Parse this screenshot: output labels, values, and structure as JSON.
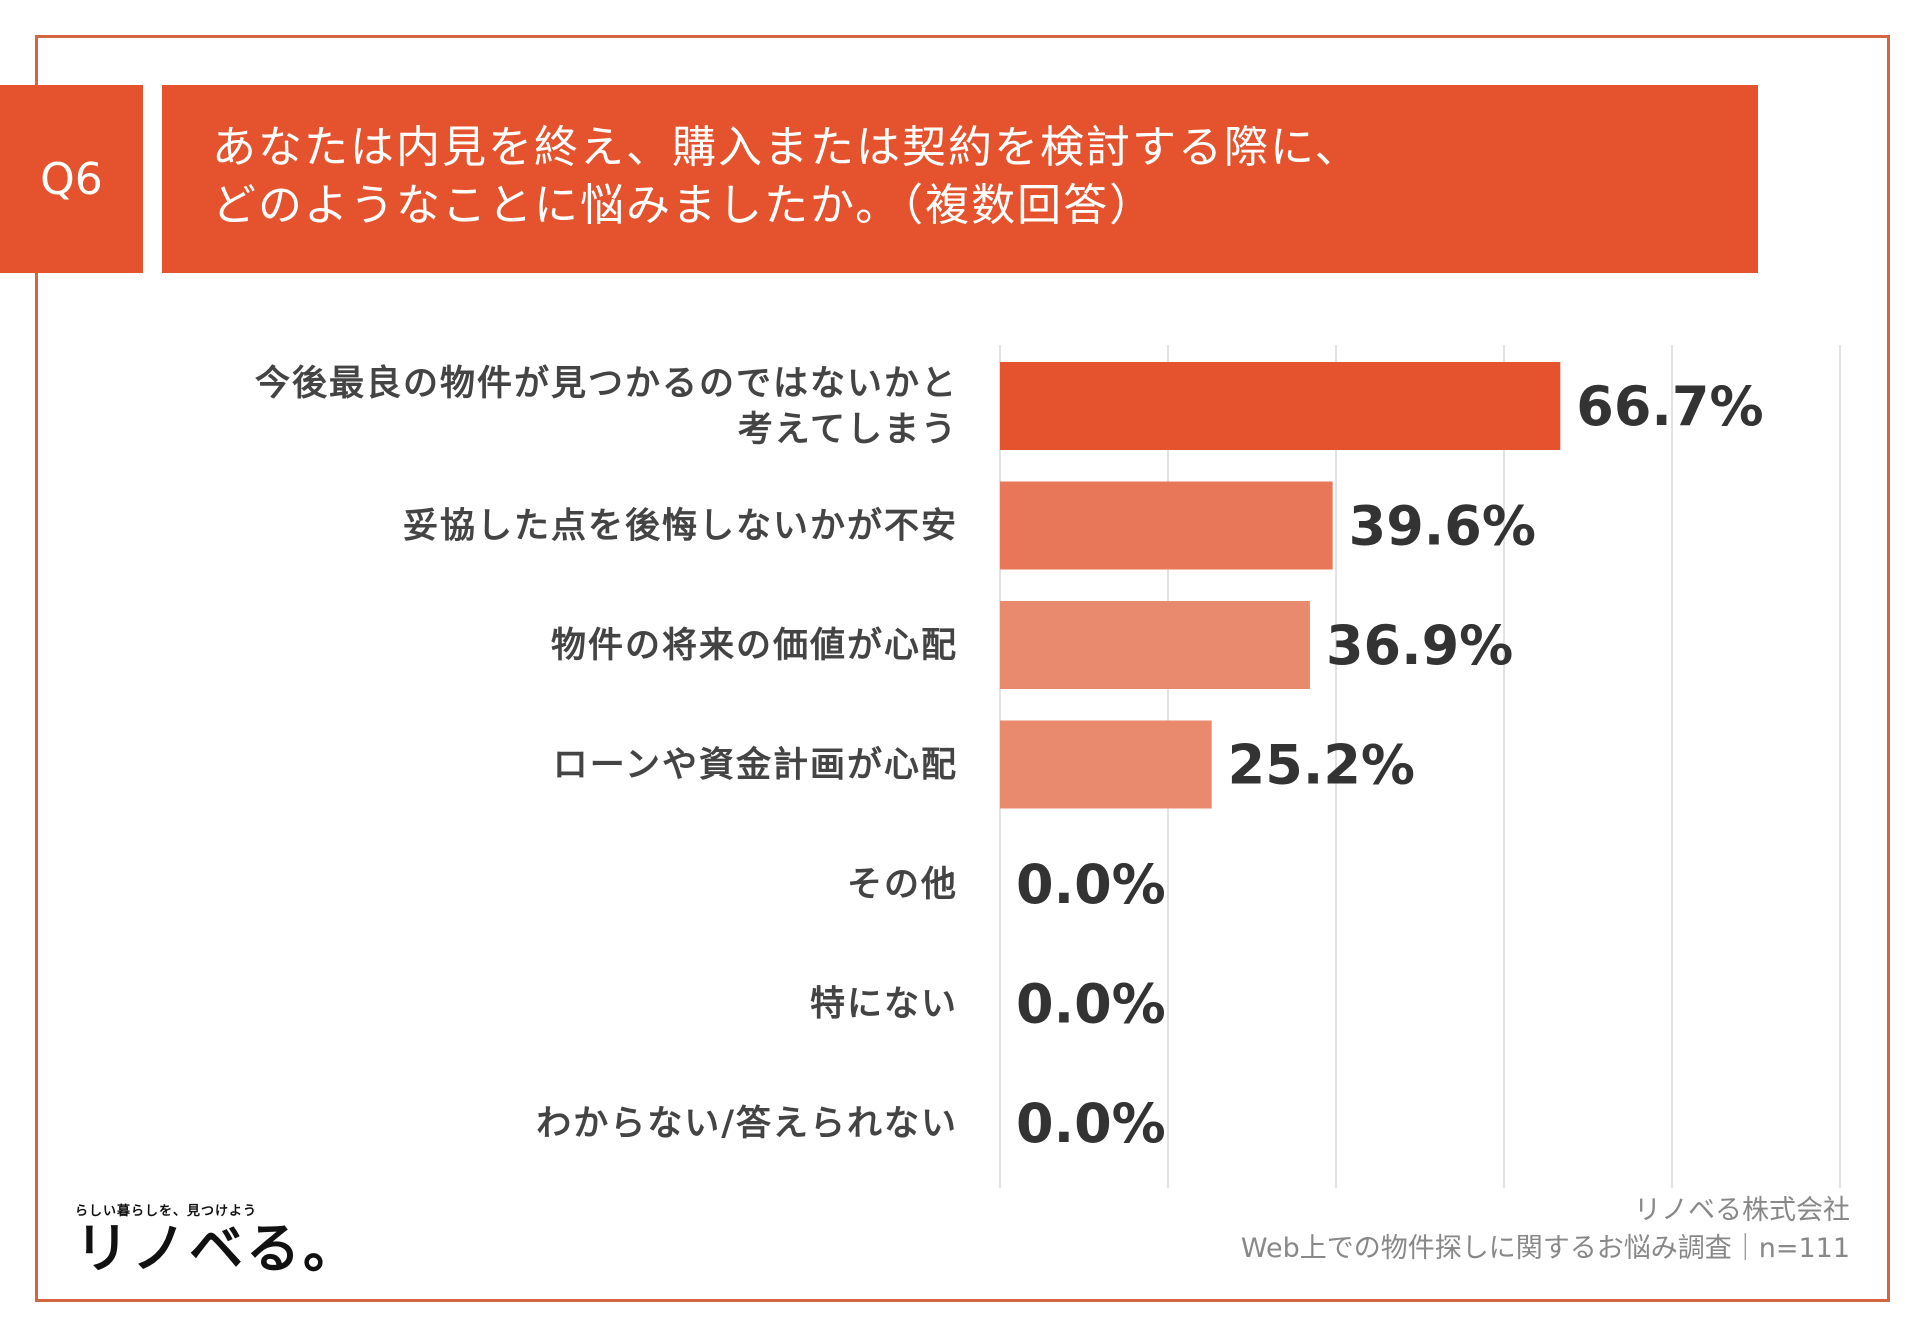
{
  "question": {
    "badge": "Q6",
    "line1": "あなたは内見を終え、購入または契約を検討する際に、",
    "line2": "どのようなことに悩みましたか。（複数回答）"
  },
  "chart_data": {
    "type": "bar",
    "orientation": "horizontal",
    "categories": [
      [
        "今後最良の物件が見つかるのではないかと",
        "考えてしまう"
      ],
      [
        "妥協した点を後悔しないかが不安"
      ],
      [
        "物件の将来の価値が心配"
      ],
      [
        "ローンや資金計画が心配"
      ],
      [
        "その他"
      ],
      [
        "特にない"
      ],
      [
        "わからない/答えられない"
      ]
    ],
    "values": [
      66.7,
      39.6,
      36.9,
      25.2,
      0.0,
      0.0,
      0.0
    ],
    "value_labels": [
      "66.7%",
      "39.6%",
      "36.9%",
      "25.2%",
      "0.0%",
      "0.0%",
      "0.0%"
    ],
    "xlim": [
      0,
      100
    ],
    "gridlines": true,
    "colors": [
      "#e5532e",
      "#e8775a",
      "#e98a6e",
      "#e98a6e",
      "#e98a6e",
      "#e98a6e",
      "#e98a6e"
    ]
  },
  "footer": {
    "logo_tagline": "らしい暮らしを、見つけよう",
    "logo_brand": "リノベる。",
    "company": "リノベる株式会社",
    "survey": "Web上での物件探しに関するお悩み調査｜n=111"
  }
}
